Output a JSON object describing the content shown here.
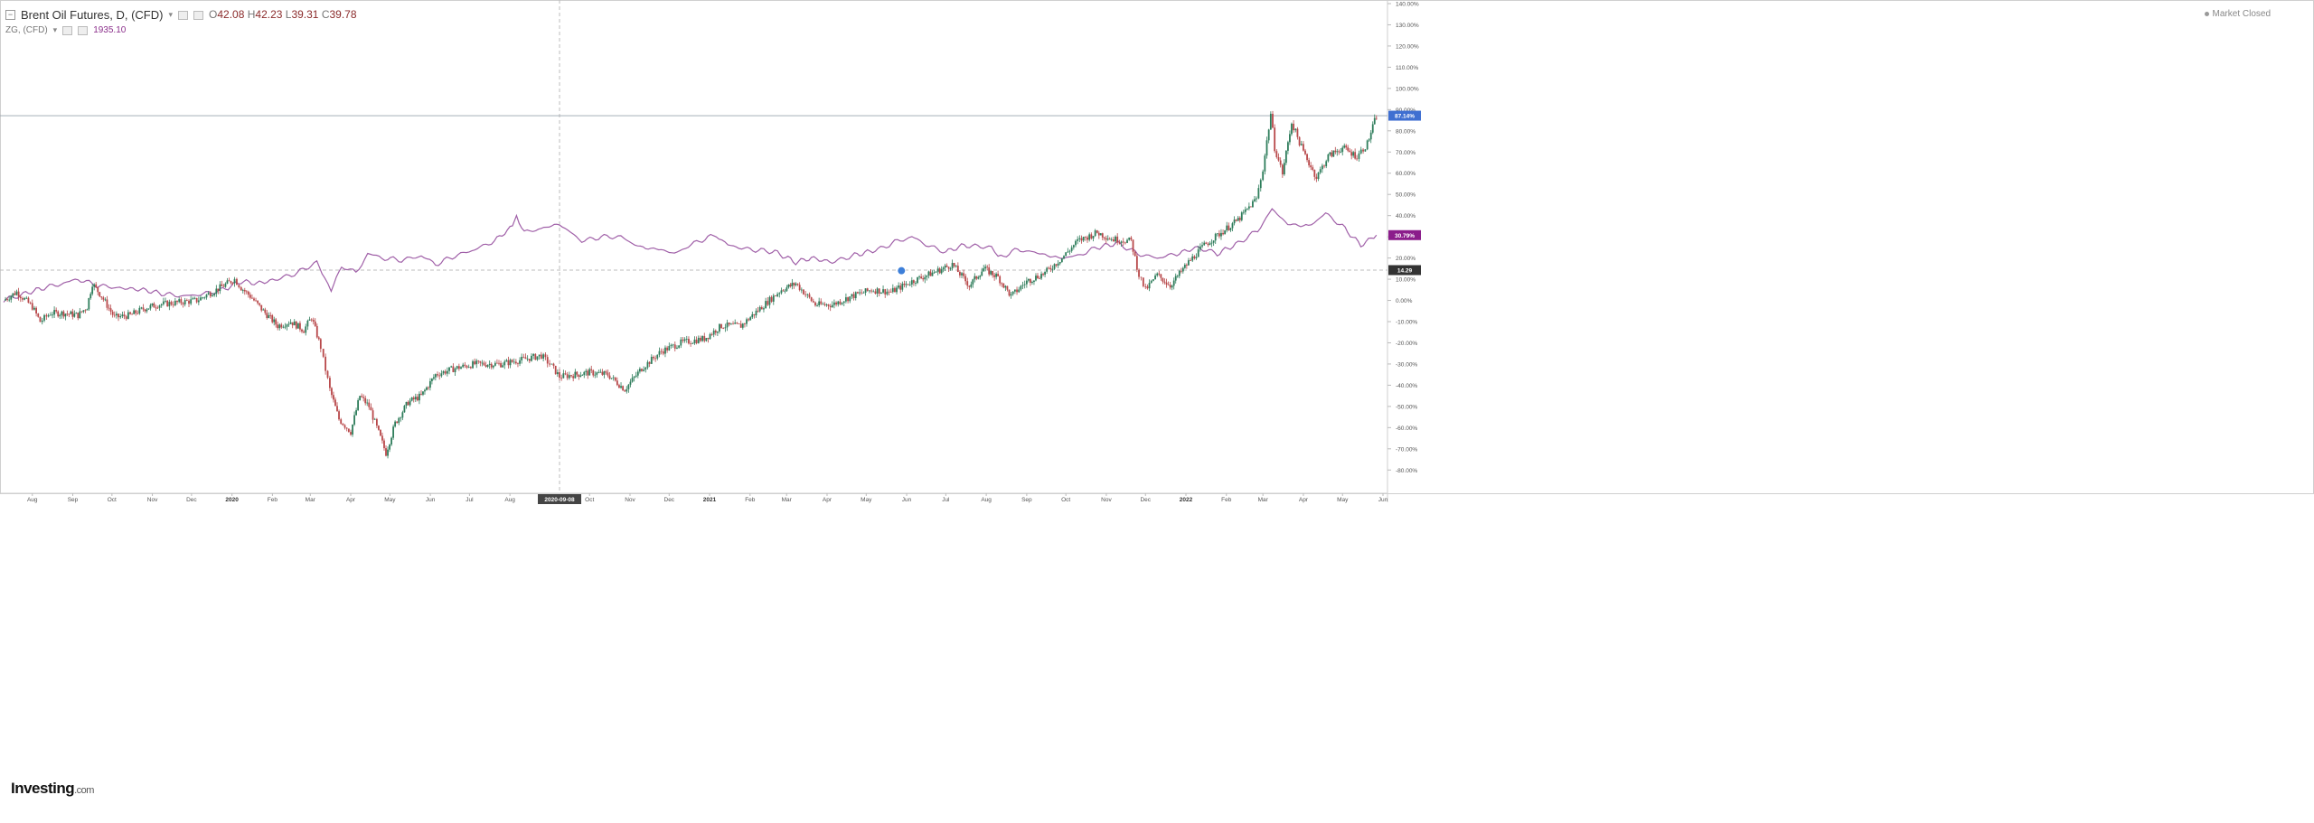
{
  "legend": {
    "title": "Brent Oil Futures, D, (CFD)",
    "ohlc": {
      "o_label": "O",
      "o": "42.08",
      "h_label": "H",
      "h": "42.23",
      "l_label": "L",
      "l": "39.31",
      "c_label": "C",
      "c": "39.78"
    },
    "second_label": "ZG, (CFD)",
    "second_value": "1935.10"
  },
  "status": {
    "text": "Market Closed"
  },
  "logo": {
    "brand": "Investing",
    "domain": ".com"
  },
  "colors": {
    "up": "#2e7d5b",
    "down": "#b8484a",
    "compare": "#a060a8",
    "last_badge": "#3f6fd1",
    "compare_badge": "#8b1d8b",
    "ref_badge": "#333333"
  },
  "chart_data": {
    "type": "line",
    "title": "",
    "xlabel": "",
    "ylabel": "",
    "y_unit": "%",
    "ylim": [
      -85,
      140
    ],
    "y_ticks": [
      "140.00%",
      "130.00%",
      "120.00%",
      "110.00%",
      "100.00%",
      "90.00%",
      "80.00%",
      "70.00%",
      "60.00%",
      "50.00%",
      "40.00%",
      "30.00%",
      "20.00%",
      "10.00%",
      "0.00%",
      "-10.00%",
      "-20.00%",
      "-30.00%",
      "-40.00%",
      "-50.00%",
      "-60.00%",
      "-70.00%",
      "-80.00%"
    ],
    "x_ticks": [
      "Aug",
      "Sep",
      "Oct",
      "Nov",
      "Dec",
      "2020",
      "Feb",
      "Mar",
      "Apr",
      "May",
      "Jun",
      "Jul",
      "Aug",
      "2020-09-08",
      "Oct",
      "Nov",
      "Dec",
      "2021",
      "Feb",
      "Mar",
      "Apr",
      "May",
      "Jun",
      "Jul",
      "Aug",
      "Sep",
      "Oct",
      "Nov",
      "Dec",
      "2022",
      "Feb",
      "Mar",
      "Apr",
      "May",
      "Jun"
    ],
    "x_range": [
      "2019-07-10",
      "2022-06-01"
    ],
    "crosshair": {
      "x": "2020-09-08",
      "x_label": "2020-09-08",
      "y": 14.29,
      "y_label": "14.29"
    },
    "last_value_labels": [
      {
        "series": "Brent Oil Futures",
        "value": "87.14%"
      },
      {
        "series": "ZG",
        "value": "30.79%"
      }
    ],
    "grid": false,
    "series": [
      {
        "name": "Brent Oil Futures",
        "style": "candlestick",
        "points": [
          [
            "2019-07-10",
            0
          ],
          [
            "2019-07-20",
            4
          ],
          [
            "2019-08-01",
            -3
          ],
          [
            "2019-08-07",
            -10
          ],
          [
            "2019-08-15",
            -6
          ],
          [
            "2019-08-25",
            -6
          ],
          [
            "2019-09-05",
            -7
          ],
          [
            "2019-09-12",
            -3
          ],
          [
            "2019-09-16",
            8
          ],
          [
            "2019-09-23",
            2
          ],
          [
            "2019-10-03",
            -8
          ],
          [
            "2019-10-15",
            -7
          ],
          [
            "2019-10-25",
            -4
          ],
          [
            "2019-11-05",
            -2
          ],
          [
            "2019-11-20",
            -1
          ],
          [
            "2019-12-05",
            0
          ],
          [
            "2019-12-20",
            5
          ],
          [
            "2020-01-03",
            10
          ],
          [
            "2020-01-08",
            6
          ],
          [
            "2020-01-15",
            2
          ],
          [
            "2020-01-25",
            -5
          ],
          [
            "2020-02-05",
            -12
          ],
          [
            "2020-02-15",
            -10
          ],
          [
            "2020-02-25",
            -14
          ],
          [
            "2020-03-02",
            -8
          ],
          [
            "2020-03-09",
            -22
          ],
          [
            "2020-03-11",
            -28
          ],
          [
            "2020-03-16",
            -42
          ],
          [
            "2020-03-23",
            -56
          ],
          [
            "2020-04-01",
            -62
          ],
          [
            "2020-04-08",
            -45
          ],
          [
            "2020-04-15",
            -50
          ],
          [
            "2020-04-21",
            -60
          ],
          [
            "2020-04-28",
            -72
          ],
          [
            "2020-05-05",
            -58
          ],
          [
            "2020-05-15",
            -48
          ],
          [
            "2020-05-25",
            -45
          ],
          [
            "2020-06-05",
            -35
          ],
          [
            "2020-06-20",
            -32
          ],
          [
            "2020-07-05",
            -30
          ],
          [
            "2020-07-25",
            -30
          ],
          [
            "2020-08-10",
            -28
          ],
          [
            "2020-08-25",
            -26
          ],
          [
            "2020-09-02",
            -31
          ],
          [
            "2020-09-08",
            -36
          ],
          [
            "2020-09-20",
            -35
          ],
          [
            "2020-10-01",
            -34
          ],
          [
            "2020-10-15",
            -35
          ],
          [
            "2020-10-28",
            -42
          ],
          [
            "2020-11-10",
            -32
          ],
          [
            "2020-11-25",
            -24
          ],
          [
            "2020-12-10",
            -20
          ],
          [
            "2020-12-28",
            -18
          ],
          [
            "2021-01-10",
            -12
          ],
          [
            "2021-01-25",
            -12
          ],
          [
            "2021-02-10",
            -3
          ],
          [
            "2021-02-25",
            5
          ],
          [
            "2021-03-08",
            8
          ],
          [
            "2021-03-23",
            -2
          ],
          [
            "2021-04-05",
            -2
          ],
          [
            "2021-04-20",
            2
          ],
          [
            "2021-05-05",
            5
          ],
          [
            "2021-05-20",
            4
          ],
          [
            "2021-06-05",
            9
          ],
          [
            "2021-06-25",
            14
          ],
          [
            "2021-07-06",
            17
          ],
          [
            "2021-07-19",
            7
          ],
          [
            "2021-07-30",
            15
          ],
          [
            "2021-08-10",
            11
          ],
          [
            "2021-08-20",
            2
          ],
          [
            "2021-09-01",
            9
          ],
          [
            "2021-09-15",
            13
          ],
          [
            "2021-09-28",
            20
          ],
          [
            "2021-10-10",
            28
          ],
          [
            "2021-10-25",
            32
          ],
          [
            "2021-11-05",
            29
          ],
          [
            "2021-11-20",
            28
          ],
          [
            "2021-11-26",
            12
          ],
          [
            "2021-12-01",
            5
          ],
          [
            "2021-12-10",
            12
          ],
          [
            "2021-12-20",
            7
          ],
          [
            "2022-01-03",
            18
          ],
          [
            "2022-01-15",
            26
          ],
          [
            "2022-01-28",
            32
          ],
          [
            "2022-02-10",
            38
          ],
          [
            "2022-02-24",
            48
          ],
          [
            "2022-03-01",
            62
          ],
          [
            "2022-03-07",
            88
          ],
          [
            "2022-03-10",
            72
          ],
          [
            "2022-03-16",
            60
          ],
          [
            "2022-03-23",
            84
          ],
          [
            "2022-04-01",
            70
          ],
          [
            "2022-04-11",
            58
          ],
          [
            "2022-04-20",
            68
          ],
          [
            "2022-05-01",
            72
          ],
          [
            "2022-05-12",
            68
          ],
          [
            "2022-05-20",
            74
          ],
          [
            "2022-05-27",
            87.14
          ]
        ]
      },
      {
        "name": "ZG",
        "style": "line",
        "points": [
          [
            "2019-07-10",
            0
          ],
          [
            "2019-07-25",
            3
          ],
          [
            "2019-08-10",
            6
          ],
          [
            "2019-08-25",
            8
          ],
          [
            "2019-09-05",
            10
          ],
          [
            "2019-09-20",
            7
          ],
          [
            "2019-10-05",
            6
          ],
          [
            "2019-10-25",
            5
          ],
          [
            "2019-11-10",
            3
          ],
          [
            "2019-11-25",
            2
          ],
          [
            "2019-12-10",
            3
          ],
          [
            "2019-12-25",
            5
          ],
          [
            "2020-01-08",
            9
          ],
          [
            "2020-01-20",
            8
          ],
          [
            "2020-02-05",
            10
          ],
          [
            "2020-02-20",
            13
          ],
          [
            "2020-03-06",
            18
          ],
          [
            "2020-03-12",
            11
          ],
          [
            "2020-03-17",
            5
          ],
          [
            "2020-03-25",
            16
          ],
          [
            "2020-04-05",
            13
          ],
          [
            "2020-04-14",
            22
          ],
          [
            "2020-04-25",
            20
          ],
          [
            "2020-05-10",
            19
          ],
          [
            "2020-05-25",
            21
          ],
          [
            "2020-06-05",
            17
          ],
          [
            "2020-06-20",
            21
          ],
          [
            "2020-07-05",
            24
          ],
          [
            "2020-07-20",
            28
          ],
          [
            "2020-08-03",
            35
          ],
          [
            "2020-08-06",
            40
          ],
          [
            "2020-08-12",
            32
          ],
          [
            "2020-08-25",
            34
          ],
          [
            "2020-09-08",
            36
          ],
          [
            "2020-09-25",
            28
          ],
          [
            "2020-10-10",
            30
          ],
          [
            "2020-10-25",
            30
          ],
          [
            "2020-11-09",
            25
          ],
          [
            "2020-11-25",
            24
          ],
          [
            "2020-12-05",
            22
          ],
          [
            "2020-12-20",
            27
          ],
          [
            "2021-01-06",
            31
          ],
          [
            "2021-01-15",
            26
          ],
          [
            "2021-02-01",
            24
          ],
          [
            "2021-02-20",
            23
          ],
          [
            "2021-03-08",
            18
          ],
          [
            "2021-03-20",
            20
          ],
          [
            "2021-04-05",
            18
          ],
          [
            "2021-04-20",
            21
          ],
          [
            "2021-05-10",
            24
          ],
          [
            "2021-05-25",
            28
          ],
          [
            "2021-06-05",
            30
          ],
          [
            "2021-06-20",
            25
          ],
          [
            "2021-07-01",
            23
          ],
          [
            "2021-07-15",
            26
          ],
          [
            "2021-08-05",
            25
          ],
          [
            "2021-08-10",
            20
          ],
          [
            "2021-08-25",
            24
          ],
          [
            "2021-09-05",
            23
          ],
          [
            "2021-09-25",
            20
          ],
          [
            "2021-10-10",
            21
          ],
          [
            "2021-10-25",
            25
          ],
          [
            "2021-11-10",
            27
          ],
          [
            "2021-11-25",
            22
          ],
          [
            "2021-12-10",
            20
          ],
          [
            "2021-12-25",
            22
          ],
          [
            "2022-01-10",
            25
          ],
          [
            "2022-01-25",
            22
          ],
          [
            "2022-02-10",
            27
          ],
          [
            "2022-02-25",
            33
          ],
          [
            "2022-03-08",
            43
          ],
          [
            "2022-03-20",
            36
          ],
          [
            "2022-04-05",
            35
          ],
          [
            "2022-04-18",
            41
          ],
          [
            "2022-05-01",
            35
          ],
          [
            "2022-05-15",
            26
          ],
          [
            "2022-05-27",
            30.79
          ]
        ]
      }
    ]
  }
}
